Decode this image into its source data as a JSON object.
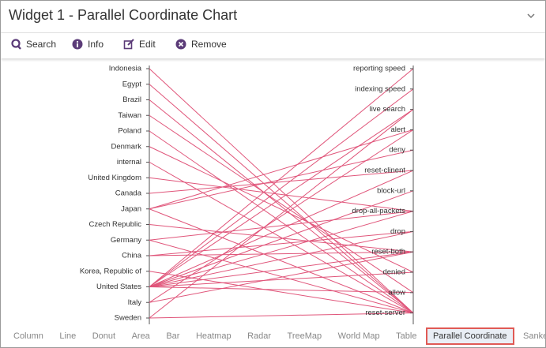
{
  "header": {
    "title": "Widget 1 - Parallel Coordinate Chart"
  },
  "toolbar": [
    "Search",
    "Info",
    "Edit",
    "Remove"
  ],
  "chart": {
    "left_axis": [
      "Indonesia",
      "Egypt",
      "Brazil",
      "Taiwan",
      "Poland",
      "Denmark",
      "internal",
      "United Kingdom",
      "Canada",
      "Japan",
      "Czech Republic",
      "Germany",
      "China",
      "Korea, Republic of",
      "United States",
      "Italy",
      "Sweden"
    ],
    "right_axis": [
      "reporting speed",
      "indexing speed",
      "live search",
      "alert",
      "deny",
      "reset-clinent",
      "block-url",
      "drop-all-packets",
      "drop",
      "reset-both",
      "denied",
      "allow",
      "reset-server"
    ],
    "links": [
      {
        "from": 0,
        "to": 12
      },
      {
        "from": 1,
        "to": 12
      },
      {
        "from": 2,
        "to": 12
      },
      {
        "from": 3,
        "to": 11
      },
      {
        "from": 4,
        "to": 12
      },
      {
        "from": 5,
        "to": 10
      },
      {
        "from": 6,
        "to": 12
      },
      {
        "from": 7,
        "to": 7
      },
      {
        "from": 8,
        "to": 5
      },
      {
        "from": 9,
        "to": 4
      },
      {
        "from": 9,
        "to": 3
      },
      {
        "from": 9,
        "to": 12
      },
      {
        "from": 10,
        "to": 9
      },
      {
        "from": 11,
        "to": 7
      },
      {
        "from": 11,
        "to": 12
      },
      {
        "from": 12,
        "to": 8
      },
      {
        "from": 12,
        "to": 9
      },
      {
        "from": 13,
        "to": 12
      },
      {
        "from": 14,
        "to": 0
      },
      {
        "from": 14,
        "to": 1
      },
      {
        "from": 14,
        "to": 2
      },
      {
        "from": 14,
        "to": 5
      },
      {
        "from": 14,
        "to": 6
      },
      {
        "from": 14,
        "to": 7
      },
      {
        "from": 14,
        "to": 8
      },
      {
        "from": 14,
        "to": 9
      },
      {
        "from": 14,
        "to": 10
      },
      {
        "from": 14,
        "to": 11
      },
      {
        "from": 15,
        "to": 9
      },
      {
        "from": 16,
        "to": 12
      },
      {
        "from": 16,
        "to": 2
      },
      {
        "from": 15,
        "to": 3
      }
    ]
  },
  "tabs": [
    "Column",
    "Line",
    "Donut",
    "Area",
    "Bar",
    "Heatmap",
    "Radar",
    "TreeMap",
    "World Map",
    "Table",
    "Parallel Coordinate",
    "Sankey"
  ],
  "active_tab": 10
}
